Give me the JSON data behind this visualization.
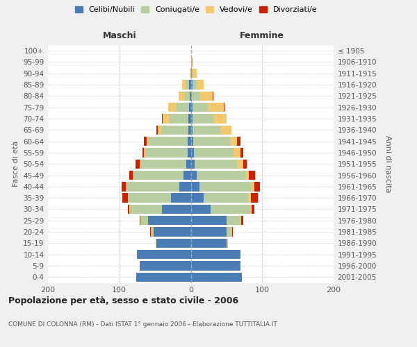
{
  "age_groups": [
    "0-4",
    "5-9",
    "10-14",
    "15-19",
    "20-24",
    "25-29",
    "30-34",
    "35-39",
    "40-44",
    "45-49",
    "50-54",
    "55-59",
    "60-64",
    "65-69",
    "70-74",
    "75-79",
    "80-84",
    "85-89",
    "90-94",
    "95-99",
    "100+"
  ],
  "birth_years": [
    "2001-2005",
    "1996-2000",
    "1991-1995",
    "1986-1990",
    "1981-1985",
    "1976-1980",
    "1971-1975",
    "1966-1970",
    "1961-1965",
    "1956-1960",
    "1951-1955",
    "1946-1950",
    "1941-1945",
    "1936-1940",
    "1931-1935",
    "1926-1930",
    "1921-1925",
    "1916-1920",
    "1911-1915",
    "1906-1910",
    "≤ 1905"
  ],
  "males": {
    "celibi": [
      76,
      72,
      75,
      48,
      52,
      60,
      40,
      28,
      16,
      10,
      6,
      4,
      4,
      3,
      3,
      2,
      1,
      2,
      0,
      0,
      0
    ],
    "coniugati": [
      0,
      0,
      0,
      1,
      4,
      10,
      45,
      60,
      75,
      70,
      65,
      60,
      55,
      38,
      28,
      18,
      8,
      5,
      0,
      0,
      0
    ],
    "vedovi": [
      0,
      0,
      0,
      0,
      0,
      1,
      1,
      0,
      0,
      1,
      1,
      2,
      3,
      5,
      8,
      12,
      8,
      5,
      1,
      0,
      0
    ],
    "divorziati": [
      0,
      0,
      0,
      0,
      1,
      1,
      2,
      8,
      6,
      5,
      5,
      2,
      4,
      2,
      1,
      0,
      0,
      0,
      0,
      0,
      0
    ]
  },
  "females": {
    "nubili": [
      72,
      70,
      70,
      50,
      50,
      50,
      28,
      18,
      12,
      8,
      5,
      4,
      3,
      2,
      2,
      2,
      1,
      2,
      1,
      0,
      0
    ],
    "coniugate": [
      0,
      0,
      0,
      2,
      8,
      20,
      55,
      62,
      72,
      68,
      60,
      56,
      52,
      40,
      30,
      22,
      12,
      6,
      2,
      1,
      0
    ],
    "vedove": [
      0,
      0,
      0,
      0,
      0,
      1,
      2,
      4,
      5,
      5,
      8,
      10,
      10,
      15,
      18,
      22,
      18,
      10,
      5,
      2,
      0
    ],
    "divorziate": [
      0,
      0,
      0,
      0,
      1,
      2,
      4,
      10,
      8,
      9,
      5,
      3,
      5,
      0,
      0,
      1,
      1,
      0,
      0,
      0,
      0
    ]
  },
  "colors": {
    "celibi": "#4a7db5",
    "coniugati": "#b8ceA0",
    "vedovi": "#f2c96e",
    "divorziati": "#cc2200"
  },
  "xlim": [
    -200,
    200
  ],
  "xticks": [
    -200,
    -100,
    0,
    100,
    200
  ],
  "xticklabels": [
    "200",
    "100",
    "0",
    "100",
    "200"
  ],
  "title": "Popolazione per età, sesso e stato civile - 2006",
  "subtitle": "COMUNE DI COLONNA (RM) - Dati ISTAT 1° gennaio 2006 - Elaborazione TUTTITALIA.IT",
  "ylabel_left": "Fasce di età",
  "ylabel_right": "Anni di nascita",
  "label_maschi": "Maschi",
  "label_femmine": "Femmine",
  "legend_labels": [
    "Celibi/Nubili",
    "Coniugati/e",
    "Vedovi/e",
    "Divorziati/e"
  ],
  "bg_color": "#f0f0f0",
  "plot_bg": "#ffffff"
}
